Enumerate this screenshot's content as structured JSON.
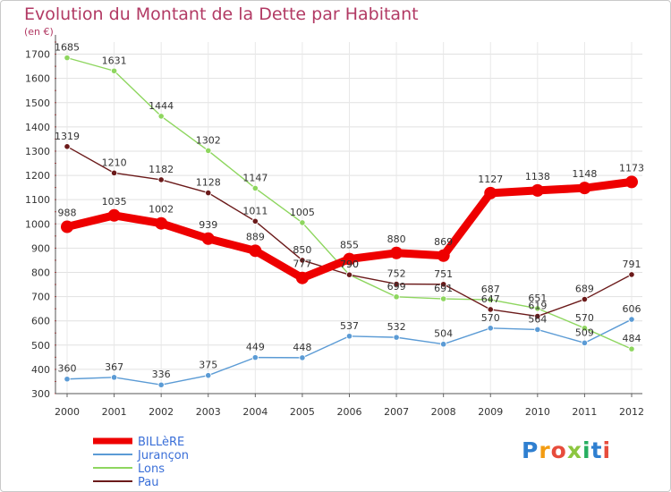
{
  "header": {
    "title": "Evolution du Montant de la Dette par Habitant",
    "subtitle": "(en €)"
  },
  "logo": {
    "text": "Proxiti",
    "colors": [
      "#2f7fd0",
      "#f39c12",
      "#e74c3c",
      "#8cc63f",
      "#27ae60",
      "#2f7fd0",
      "#e74c3c"
    ]
  },
  "chart_data": {
    "type": "line",
    "title": "Evolution du Montant de la Dette par Habitant",
    "subtitle": "(en €)",
    "xlabel": "",
    "ylabel": "",
    "x": [
      "2000",
      "2001",
      "2002",
      "2003",
      "2004",
      "2005",
      "2006",
      "2007",
      "2008",
      "2009",
      "2010",
      "2011",
      "2012"
    ],
    "yticks": [
      300,
      400,
      500,
      600,
      700,
      800,
      900,
      1000,
      1100,
      1200,
      1300,
      1400,
      1500,
      1600,
      1700
    ],
    "ylim": [
      300,
      1750
    ],
    "grid": "horizontal",
    "legend_position": "bottom-left",
    "series": [
      {
        "name": "BILLèRE",
        "color": "#ee0000",
        "values": [
          988,
          1035,
          1002,
          939,
          889,
          777,
          855,
          880,
          869,
          1127,
          1138,
          1148,
          1173
        ]
      },
      {
        "name": "Jurançon",
        "color": "#5b9bd5",
        "values": [
          360,
          367,
          336,
          375,
          449,
          448,
          537,
          532,
          504,
          570,
          564,
          509,
          606
        ]
      },
      {
        "name": "Lons",
        "color": "#8ed65f",
        "values": [
          1685,
          1631,
          1444,
          1302,
          1147,
          1005,
          790,
          699,
          691,
          687,
          651,
          570,
          484
        ]
      },
      {
        "name": "Pau",
        "color": "#6b1a1a",
        "values": [
          1319,
          1210,
          1182,
          1128,
          1011,
          850,
          790,
          752,
          751,
          647,
          619,
          689,
          791
        ]
      }
    ]
  }
}
